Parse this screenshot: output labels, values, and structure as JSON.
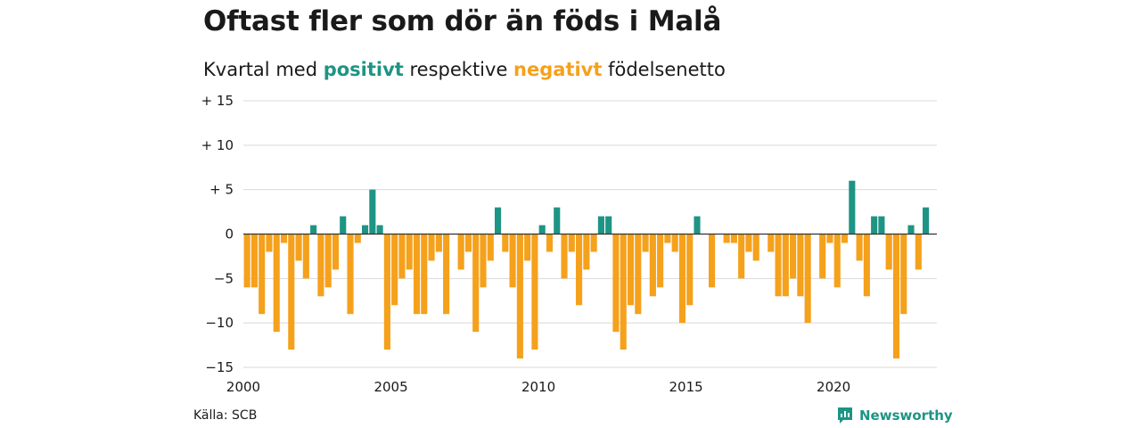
{
  "header": {
    "title": "Oftast fler som dör än föds i Malå",
    "subtitle_prefix": "Kvartal med ",
    "subtitle_positive": "positivt",
    "subtitle_middle": " respektive ",
    "subtitle_negative": "negativt",
    "subtitle_suffix": " födelsenetto"
  },
  "footer": {
    "source": "Källa: SCB",
    "brand": "Newsworthy",
    "brand_icon": "newsworthy-logo-icon"
  },
  "colors": {
    "positive": "#1e9484",
    "negative": "#f5a11c",
    "grid": "#d9d9d9",
    "zero_line": "#333333"
  },
  "chart_data": {
    "type": "bar",
    "x_start": "2000 Q1",
    "x_step": "quarter",
    "xlim": [
      2000,
      2023.5
    ],
    "ylim": [
      -15,
      15
    ],
    "grid": "horizontal",
    "xticks": [
      {
        "value": 2000,
        "label": "2000"
      },
      {
        "value": 2005,
        "label": "2005"
      },
      {
        "value": 2010,
        "label": "2010"
      },
      {
        "value": 2015,
        "label": "2015"
      },
      {
        "value": 2020,
        "label": "2020"
      }
    ],
    "yticks": [
      {
        "value": 15,
        "label": "+ 15"
      },
      {
        "value": 10,
        "label": "+ 10"
      },
      {
        "value": 5,
        "label": "+  5"
      },
      {
        "value": 0,
        "label": "0"
      },
      {
        "value": -5,
        "label": "−5"
      },
      {
        "value": -10,
        "label": "−10"
      },
      {
        "value": -15,
        "label": "−15"
      }
    ],
    "values": [
      -6,
      -6,
      -9,
      -2,
      -11,
      -1,
      -13,
      -3,
      -5,
      1,
      -7,
      -6,
      -4,
      2,
      -9,
      -1,
      1,
      5,
      1,
      -13,
      -8,
      -5,
      -4,
      -9,
      -9,
      -3,
      -2,
      -9,
      0,
      -4,
      -2,
      -11,
      -6,
      -3,
      3,
      -2,
      -6,
      -14,
      -3,
      -13,
      1,
      -2,
      3,
      -5,
      -2,
      -8,
      -4,
      -2,
      2,
      2,
      -11,
      -13,
      -8,
      -9,
      -2,
      -7,
      -6,
      -1,
      -2,
      -10,
      -8,
      2,
      0,
      -6,
      0,
      -1,
      -1,
      -5,
      -2,
      -3,
      0,
      -2,
      -7,
      -7,
      -5,
      -7,
      -10,
      0,
      -5,
      -1,
      -6,
      -1,
      6,
      -3,
      -7,
      2,
      2,
      -4,
      -14,
      -9,
      1,
      -4,
      3
    ]
  }
}
